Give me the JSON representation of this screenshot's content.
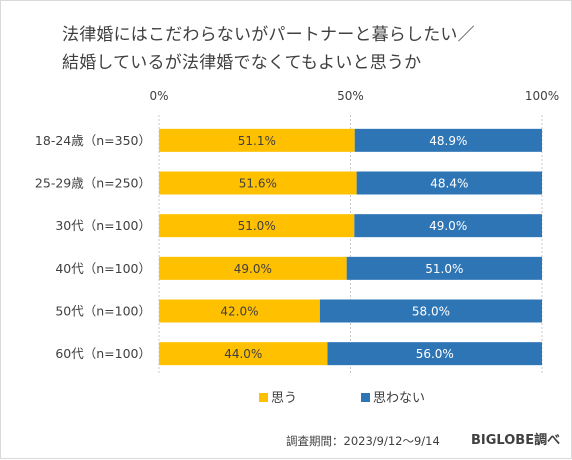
{
  "title_line1": "法律婚にはこだわらないがパートナーと暮らしたい／",
  "title_line2": "結婚しているが法律婚でなくてもよいと思うか",
  "footer": {
    "survey_period": "調査期間：2023/9/12〜9/14",
    "source": "BIGLOBE調べ"
  },
  "colors": {
    "agree": "#FFC000",
    "disagree": "#2E75B6"
  },
  "chart_data": {
    "type": "bar",
    "orientation": "horizontal",
    "stacked": "100%",
    "categories": [
      "18-24歳（n=350）",
      "25-29歳（n=250）",
      "30代（n=100）",
      "40代（n=100）",
      "50代（n=100）",
      "60代（n=100）"
    ],
    "series": [
      {
        "name": "思う",
        "values": [
          51.1,
          51.6,
          51.0,
          49.0,
          42.0,
          44.0
        ],
        "labels": [
          "51.1%",
          "51.6%",
          "51.0%",
          "49.0%",
          "42.0%",
          "44.0%"
        ]
      },
      {
        "name": "思わない",
        "values": [
          48.9,
          48.4,
          49.0,
          51.0,
          58.0,
          56.0
        ],
        "labels": [
          "48.9%",
          "48.4%",
          "49.0%",
          "51.0%",
          "58.0%",
          "56.0%"
        ]
      }
    ],
    "xticks": [
      "0%",
      "50%",
      "100%"
    ],
    "xlim": [
      0,
      100
    ],
    "grid": "vertical dotted",
    "legend_position": "bottom"
  }
}
